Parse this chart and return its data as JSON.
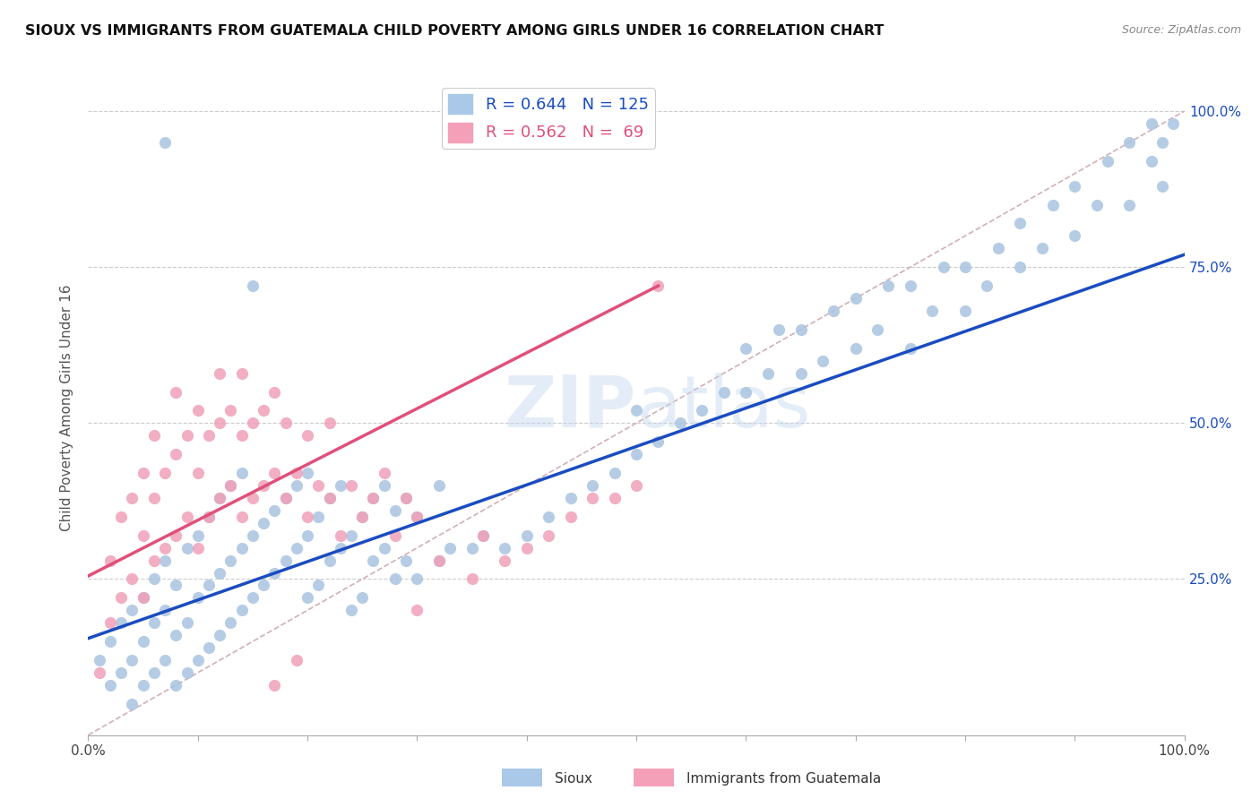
{
  "title": "SIOUX VS IMMIGRANTS FROM GUATEMALA CHILD POVERTY AMONG GIRLS UNDER 16 CORRELATION CHART",
  "source": "Source: ZipAtlas.com",
  "ylabel": "Child Poverty Among Girls Under 16",
  "xlim": [
    0.0,
    1.0
  ],
  "ylim": [
    0.0,
    1.05
  ],
  "blue_color": "#aac4e0",
  "pink_color": "#f0a0b8",
  "blue_line_color": "#1a4cc0",
  "pink_line_color": "#e0507a",
  "diagonal_color": "#d0b0b8",
  "watermark_color": "#c8d8ee",
  "blue_line": [
    0.0,
    0.155,
    1.0,
    0.77
  ],
  "pink_line": [
    0.0,
    0.255,
    0.52,
    0.72
  ],
  "blue_scatter": [
    [
      0.01,
      0.12
    ],
    [
      0.02,
      0.08
    ],
    [
      0.02,
      0.15
    ],
    [
      0.03,
      0.1
    ],
    [
      0.03,
      0.18
    ],
    [
      0.04,
      0.05
    ],
    [
      0.04,
      0.12
    ],
    [
      0.04,
      0.2
    ],
    [
      0.05,
      0.08
    ],
    [
      0.05,
      0.15
    ],
    [
      0.05,
      0.22
    ],
    [
      0.06,
      0.1
    ],
    [
      0.06,
      0.18
    ],
    [
      0.06,
      0.25
    ],
    [
      0.07,
      0.12
    ],
    [
      0.07,
      0.2
    ],
    [
      0.07,
      0.28
    ],
    [
      0.07,
      0.95
    ],
    [
      0.08,
      0.08
    ],
    [
      0.08,
      0.16
    ],
    [
      0.08,
      0.24
    ],
    [
      0.09,
      0.1
    ],
    [
      0.09,
      0.18
    ],
    [
      0.09,
      0.3
    ],
    [
      0.1,
      0.12
    ],
    [
      0.1,
      0.22
    ],
    [
      0.1,
      0.32
    ],
    [
      0.11,
      0.14
    ],
    [
      0.11,
      0.24
    ],
    [
      0.11,
      0.35
    ],
    [
      0.12,
      0.16
    ],
    [
      0.12,
      0.26
    ],
    [
      0.12,
      0.38
    ],
    [
      0.13,
      0.18
    ],
    [
      0.13,
      0.28
    ],
    [
      0.13,
      0.4
    ],
    [
      0.14,
      0.2
    ],
    [
      0.14,
      0.3
    ],
    [
      0.14,
      0.42
    ],
    [
      0.15,
      0.22
    ],
    [
      0.15,
      0.32
    ],
    [
      0.15,
      0.72
    ],
    [
      0.16,
      0.24
    ],
    [
      0.16,
      0.34
    ],
    [
      0.17,
      0.26
    ],
    [
      0.17,
      0.36
    ],
    [
      0.18,
      0.28
    ],
    [
      0.18,
      0.38
    ],
    [
      0.19,
      0.3
    ],
    [
      0.19,
      0.4
    ],
    [
      0.2,
      0.22
    ],
    [
      0.2,
      0.32
    ],
    [
      0.2,
      0.42
    ],
    [
      0.21,
      0.24
    ],
    [
      0.21,
      0.35
    ],
    [
      0.22,
      0.28
    ],
    [
      0.22,
      0.38
    ],
    [
      0.23,
      0.3
    ],
    [
      0.23,
      0.4
    ],
    [
      0.24,
      0.2
    ],
    [
      0.24,
      0.32
    ],
    [
      0.25,
      0.22
    ],
    [
      0.25,
      0.35
    ],
    [
      0.26,
      0.28
    ],
    [
      0.26,
      0.38
    ],
    [
      0.27,
      0.3
    ],
    [
      0.27,
      0.4
    ],
    [
      0.28,
      0.25
    ],
    [
      0.28,
      0.36
    ],
    [
      0.29,
      0.28
    ],
    [
      0.29,
      0.38
    ],
    [
      0.3,
      0.25
    ],
    [
      0.3,
      0.35
    ],
    [
      0.32,
      0.28
    ],
    [
      0.32,
      0.4
    ],
    [
      0.33,
      0.3
    ],
    [
      0.35,
      0.3
    ],
    [
      0.36,
      0.32
    ],
    [
      0.38,
      0.3
    ],
    [
      0.4,
      0.32
    ],
    [
      0.42,
      0.35
    ],
    [
      0.44,
      0.38
    ],
    [
      0.46,
      0.4
    ],
    [
      0.48,
      0.42
    ],
    [
      0.5,
      0.45
    ],
    [
      0.5,
      0.52
    ],
    [
      0.52,
      0.47
    ],
    [
      0.54,
      0.5
    ],
    [
      0.56,
      0.52
    ],
    [
      0.58,
      0.55
    ],
    [
      0.6,
      0.55
    ],
    [
      0.6,
      0.62
    ],
    [
      0.62,
      0.58
    ],
    [
      0.63,
      0.65
    ],
    [
      0.65,
      0.58
    ],
    [
      0.65,
      0.65
    ],
    [
      0.67,
      0.6
    ],
    [
      0.68,
      0.68
    ],
    [
      0.7,
      0.62
    ],
    [
      0.7,
      0.7
    ],
    [
      0.72,
      0.65
    ],
    [
      0.73,
      0.72
    ],
    [
      0.75,
      0.62
    ],
    [
      0.75,
      0.72
    ],
    [
      0.77,
      0.68
    ],
    [
      0.78,
      0.75
    ],
    [
      0.8,
      0.68
    ],
    [
      0.8,
      0.75
    ],
    [
      0.82,
      0.72
    ],
    [
      0.83,
      0.78
    ],
    [
      0.85,
      0.75
    ],
    [
      0.85,
      0.82
    ],
    [
      0.87,
      0.78
    ],
    [
      0.88,
      0.85
    ],
    [
      0.9,
      0.8
    ],
    [
      0.9,
      0.88
    ],
    [
      0.92,
      0.85
    ],
    [
      0.93,
      0.92
    ],
    [
      0.95,
      0.85
    ],
    [
      0.95,
      0.95
    ],
    [
      0.97,
      0.92
    ],
    [
      0.97,
      0.98
    ],
    [
      0.98,
      0.88
    ],
    [
      0.98,
      0.95
    ],
    [
      0.99,
      0.98
    ]
  ],
  "pink_scatter": [
    [
      0.01,
      0.1
    ],
    [
      0.02,
      0.18
    ],
    [
      0.02,
      0.28
    ],
    [
      0.03,
      0.22
    ],
    [
      0.03,
      0.35
    ],
    [
      0.04,
      0.25
    ],
    [
      0.04,
      0.38
    ],
    [
      0.05,
      0.22
    ],
    [
      0.05,
      0.32
    ],
    [
      0.05,
      0.42
    ],
    [
      0.06,
      0.28
    ],
    [
      0.06,
      0.38
    ],
    [
      0.06,
      0.48
    ],
    [
      0.07,
      0.3
    ],
    [
      0.07,
      0.42
    ],
    [
      0.08,
      0.32
    ],
    [
      0.08,
      0.45
    ],
    [
      0.08,
      0.55
    ],
    [
      0.09,
      0.35
    ],
    [
      0.09,
      0.48
    ],
    [
      0.1,
      0.3
    ],
    [
      0.1,
      0.42
    ],
    [
      0.1,
      0.52
    ],
    [
      0.11,
      0.35
    ],
    [
      0.11,
      0.48
    ],
    [
      0.12,
      0.38
    ],
    [
      0.12,
      0.5
    ],
    [
      0.12,
      0.58
    ],
    [
      0.13,
      0.4
    ],
    [
      0.13,
      0.52
    ],
    [
      0.14,
      0.35
    ],
    [
      0.14,
      0.48
    ],
    [
      0.14,
      0.58
    ],
    [
      0.15,
      0.38
    ],
    [
      0.15,
      0.5
    ],
    [
      0.16,
      0.4
    ],
    [
      0.16,
      0.52
    ],
    [
      0.17,
      0.42
    ],
    [
      0.17,
      0.55
    ],
    [
      0.18,
      0.38
    ],
    [
      0.18,
      0.5
    ],
    [
      0.19,
      0.42
    ],
    [
      0.2,
      0.35
    ],
    [
      0.2,
      0.48
    ],
    [
      0.21,
      0.4
    ],
    [
      0.22,
      0.38
    ],
    [
      0.22,
      0.5
    ],
    [
      0.23,
      0.32
    ],
    [
      0.24,
      0.4
    ],
    [
      0.25,
      0.35
    ],
    [
      0.26,
      0.38
    ],
    [
      0.27,
      0.42
    ],
    [
      0.28,
      0.32
    ],
    [
      0.29,
      0.38
    ],
    [
      0.3,
      0.35
    ],
    [
      0.3,
      0.2
    ],
    [
      0.32,
      0.28
    ],
    [
      0.35,
      0.25
    ],
    [
      0.36,
      0.32
    ],
    [
      0.38,
      0.28
    ],
    [
      0.4,
      0.3
    ],
    [
      0.42,
      0.32
    ],
    [
      0.44,
      0.35
    ],
    [
      0.46,
      0.38
    ],
    [
      0.48,
      0.38
    ],
    [
      0.5,
      0.4
    ],
    [
      0.52,
      0.72
    ],
    [
      0.17,
      0.08
    ],
    [
      0.19,
      0.12
    ]
  ]
}
